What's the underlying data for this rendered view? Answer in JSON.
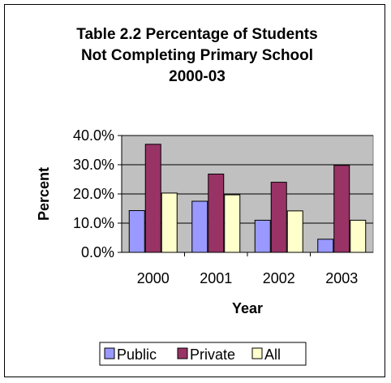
{
  "chart_data": {
    "type": "bar",
    "title_lines": [
      "Table 2.2  Percentage of Students",
      "Not Completing Primary School",
      "2000-03"
    ],
    "xlabel": "Year",
    "ylabel": "Percent",
    "categories": [
      "2000",
      "2001",
      "2002",
      "2003"
    ],
    "ylim": [
      0,
      0.4
    ],
    "yticks": [
      "0.0%",
      "10.0%",
      "20.0%",
      "30.0%",
      "40.0%"
    ],
    "grid": true,
    "legend_position": "bottom",
    "plot_background": "#c0c0c0",
    "series": [
      {
        "name": "Public",
        "color": "#9999ff",
        "values": [
          0.143,
          0.175,
          0.11,
          0.045
        ]
      },
      {
        "name": "Private",
        "color": "#993366",
        "values": [
          0.37,
          0.268,
          0.24,
          0.298
        ]
      },
      {
        "name": "All",
        "color": "#ffffcc",
        "values": [
          0.203,
          0.197,
          0.142,
          0.11
        ]
      }
    ]
  }
}
